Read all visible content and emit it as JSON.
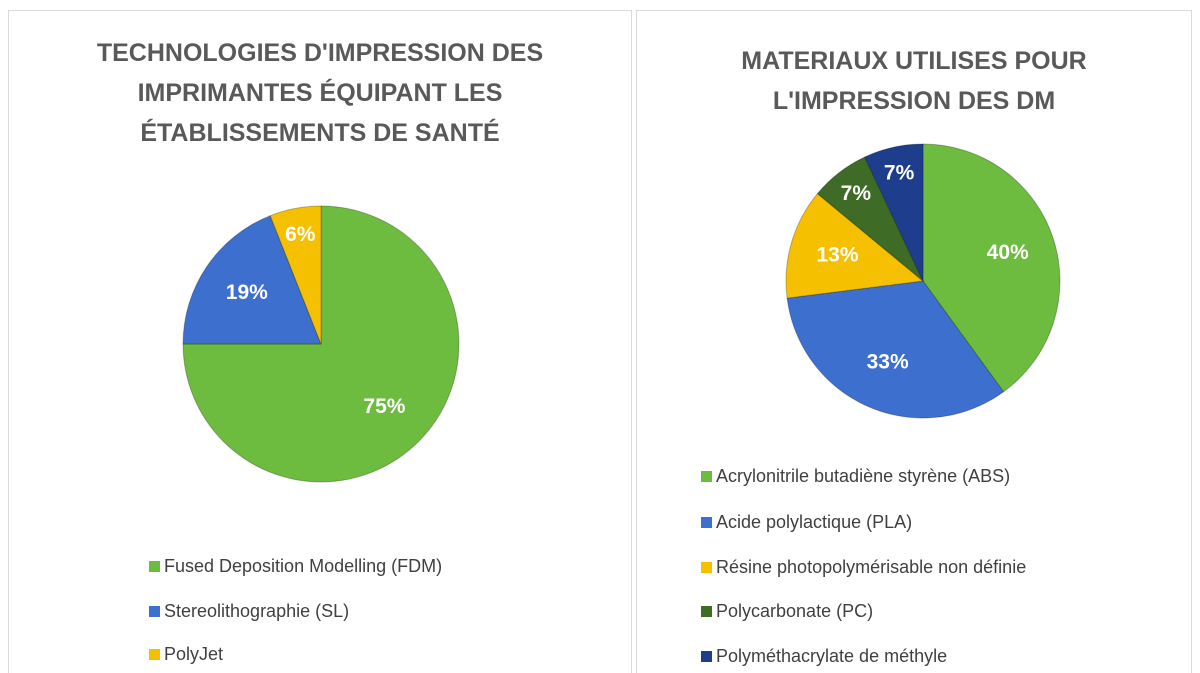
{
  "chart_data": [
    {
      "type": "pie",
      "title": "TECHNOLOGIES D'IMPRESSION DES IMPRIMANTES ÉQUIPANT LES ÉTABLISSEMENTS DE SANTÉ",
      "categories": [
        "Fused Deposition Modelling (FDM)",
        "Stereolithographie (SL)",
        "PolyJet"
      ],
      "values": [
        75,
        19,
        6
      ],
      "value_labels": [
        "75%",
        "19%",
        "6%"
      ],
      "colors": [
        "#6dbb3f",
        "#3d6fcf",
        "#f5c000"
      ]
    },
    {
      "type": "pie",
      "title": "MATERIAUX UTILISES POUR L'IMPRESSION DES DM",
      "categories": [
        "Acrylonitrile butadiène styrène (ABS)",
        "Acide polylactique (PLA)",
        "Résine photopolymérisable non définie",
        "Polycarbonate (PC)",
        "Polyméthacrylate de méthyle"
      ],
      "values": [
        40,
        33,
        13,
        7,
        7
      ],
      "value_labels": [
        "40%",
        "33%",
        "13%",
        "7%",
        "7%"
      ],
      "colors": [
        "#6dbb3f",
        "#3d6fcf",
        "#f5c000",
        "#3e6b25",
        "#1e3d8c"
      ]
    }
  ]
}
